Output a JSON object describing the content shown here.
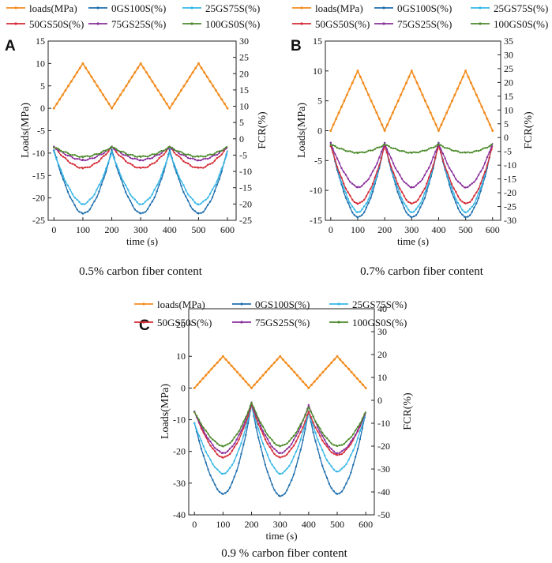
{
  "figure": {
    "legend_entries": [
      "loads(MPa)",
      "0GS100S(%)",
      "25GS75S(%)",
      "50GS50S(%)",
      "75GS25S(%)",
      "100GS0S(%)"
    ],
    "series_colors": {
      "loads(MPa)": "#f28c1e",
      "0GS100S(%)": "#1f6fad",
      "25GS75S(%)": "#36b7e6",
      "50GS50S(%)": "#d42a35",
      "75GS25S(%)": "#8a2f9b",
      "100GS0S(%)": "#4b8a2a"
    }
  },
  "chart_data": [
    {
      "type": "line",
      "panel": "A",
      "caption": "0.5% carbon fiber content",
      "xlabel": "time (s)",
      "ylabel_left": "Loads(MPa)",
      "ylabel_right": "FCR(%)",
      "xlim": [
        -20,
        630
      ],
      "xticks": [
        0,
        100,
        200,
        300,
        400,
        500,
        600
      ],
      "ylim_left": [
        -25,
        15
      ],
      "yticks_left": [
        -25,
        -20,
        -15,
        -10,
        -5,
        0,
        5,
        10,
        15
      ],
      "ylim_right": [
        -25,
        30
      ],
      "yticks_right": [
        -25,
        -20,
        -15,
        -10,
        -5,
        0,
        5,
        10,
        15,
        20,
        25,
        30
      ],
      "loads": {
        "name": "loads(MPa)",
        "x": [
          0,
          100,
          200,
          300,
          400,
          500,
          600
        ],
        "y": [
          0,
          10,
          0,
          10,
          0,
          10,
          0
        ]
      },
      "series": [
        {
          "name": "0GS100S(%)",
          "peaks_fcr": [
            -3.5,
            -23,
            -3.5,
            -23,
            -3.5,
            -23,
            -3.5
          ]
        },
        {
          "name": "25GS75S(%)",
          "peaks_fcr": [
            -4,
            -20,
            -4,
            -20,
            -4,
            -20,
            -4
          ]
        },
        {
          "name": "50GS50S(%)",
          "peaks_fcr": [
            -2.5,
            -9,
            -2.5,
            -9,
            -2.5,
            -9,
            -2.5
          ]
        },
        {
          "name": "75GS25S(%)",
          "peaks_fcr": [
            -2.5,
            -6.5,
            -2.5,
            -6.5,
            -2.5,
            -6.5,
            -2.5
          ]
        },
        {
          "name": "100GS0S(%)",
          "peaks_fcr": [
            -2.5,
            -5.5,
            -2.5,
            -5.5,
            -2.5,
            -5.5,
            -2.5
          ]
        }
      ]
    },
    {
      "type": "line",
      "panel": "B",
      "caption": "0.7% carbon fiber content",
      "xlabel": "time (s)",
      "ylabel_left": "Loads(MPa)",
      "ylabel_right": "FCR(%)",
      "xlim": [
        -20,
        630
      ],
      "xticks": [
        0,
        100,
        200,
        300,
        400,
        500,
        600
      ],
      "ylim_left": [
        -15,
        15
      ],
      "yticks_left": [
        -15,
        -10,
        -5,
        0,
        5,
        10,
        15
      ],
      "ylim_right": [
        -30,
        35
      ],
      "yticks_right": [
        -30,
        -25,
        -20,
        -15,
        -10,
        -5,
        0,
        5,
        10,
        15,
        20,
        25,
        30,
        35
      ],
      "loads": {
        "name": "loads(MPa)",
        "x": [
          0,
          100,
          200,
          300,
          400,
          500,
          600
        ],
        "y": [
          0,
          10,
          0,
          10,
          0,
          10,
          0
        ]
      },
      "series": [
        {
          "name": "0GS100S(%)",
          "peaks_fcr": [
            -2,
            -29,
            -2,
            -29,
            -2,
            -29,
            -2
          ]
        },
        {
          "name": "25GS75S(%)",
          "peaks_fcr": [
            -2,
            -27,
            -2,
            -27,
            -2,
            -27,
            -2
          ]
        },
        {
          "name": "50GS50S(%)",
          "peaks_fcr": [
            -3,
            -24,
            -3,
            -24,
            -3,
            -24,
            -3
          ]
        },
        {
          "name": "75GS25S(%)",
          "peaks_fcr": [
            -2,
            -18,
            -2,
            -18,
            -2,
            -18,
            -2
          ]
        },
        {
          "name": "100GS0S(%)",
          "peaks_fcr": [
            -2.5,
            -5.5,
            -2.5,
            -5.5,
            -2.5,
            -5.5,
            -2.5
          ]
        }
      ]
    },
    {
      "type": "line",
      "panel": "C",
      "caption": "0.9 % carbon fiber content",
      "xlabel": "time (s)",
      "ylabel_left": "Loads(MPa)",
      "ylabel_right": "FCR(%)",
      "xlim": [
        -20,
        630
      ],
      "xticks": [
        0,
        100,
        200,
        300,
        400,
        500,
        600
      ],
      "ylim_left": [
        -40,
        25
      ],
      "yticks_left": [
        -40,
        -30,
        -20,
        -10,
        0,
        10,
        20
      ],
      "ylim_right": [
        -50,
        40
      ],
      "yticks_right": [
        -50,
        -40,
        -30,
        -20,
        -10,
        0,
        10,
        20,
        30,
        40
      ],
      "loads": {
        "name": "loads(MPa)",
        "x": [
          0,
          100,
          200,
          300,
          400,
          500,
          600
        ],
        "y": [
          0,
          10,
          0,
          10,
          0,
          10,
          0
        ]
      },
      "series": [
        {
          "name": "0GS100S(%)",
          "peaks_fcr": [
            -10,
            -41,
            -2,
            -42,
            -5,
            -41,
            -5
          ]
        },
        {
          "name": "25GS75S(%)",
          "peaks_fcr": [
            -10,
            -32,
            -2,
            -32,
            -5,
            -31,
            -5
          ]
        },
        {
          "name": "50GS50S(%)",
          "peaks_fcr": [
            -5,
            -25,
            -2,
            -25,
            -5,
            -24,
            -5
          ]
        },
        {
          "name": "75GS25S(%)",
          "peaks_fcr": [
            -5,
            -23,
            -1,
            -23,
            -2,
            -23,
            -5
          ]
        },
        {
          "name": "100GS0S(%)",
          "peaks_fcr": [
            -5,
            -20,
            -1,
            -20,
            -3,
            -20,
            -5
          ]
        }
      ]
    }
  ]
}
